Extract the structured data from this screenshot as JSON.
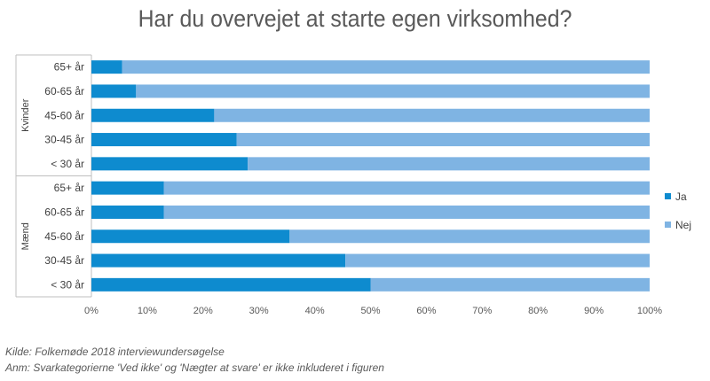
{
  "chart_data": {
    "type": "bar",
    "orientation": "horizontal",
    "stacked": "percent",
    "title": "Har du overvejet at starte egen virksomhed?",
    "groups": [
      {
        "name": "Kvinder",
        "categories": [
          "65+ år",
          "60-65 år",
          "45-60 år",
          "30-45 år",
          "< 30 år"
        ]
      },
      {
        "name": "Mænd",
        "categories": [
          "65+ år",
          "60-65 år",
          "45-60 år",
          "30-45 år",
          "< 30 år"
        ]
      }
    ],
    "series": [
      {
        "name": "Ja",
        "color": "#0e8bcf",
        "values": [
          5.5,
          8,
          22,
          26,
          28,
          13,
          13,
          35.5,
          45.5,
          50
        ]
      },
      {
        "name": "Nej",
        "color": "#7fb4e3",
        "values": [
          94.5,
          92,
          78,
          74,
          72,
          87,
          87,
          64.5,
          54.5,
          50
        ]
      }
    ],
    "xlim": [
      0,
      100
    ],
    "xticks": [
      "0%",
      "10%",
      "20%",
      "30%",
      "40%",
      "50%",
      "60%",
      "70%",
      "80%",
      "90%",
      "100%"
    ],
    "grid": false,
    "legend_position": "right"
  },
  "footnotes": {
    "source": "Kilde: Folkemøde 2018 interviewundersøgelse",
    "remark": "Anm: Svarkategorierne 'Ved ikke' og 'Nægter at svare' er ikke inkluderet i figuren"
  }
}
